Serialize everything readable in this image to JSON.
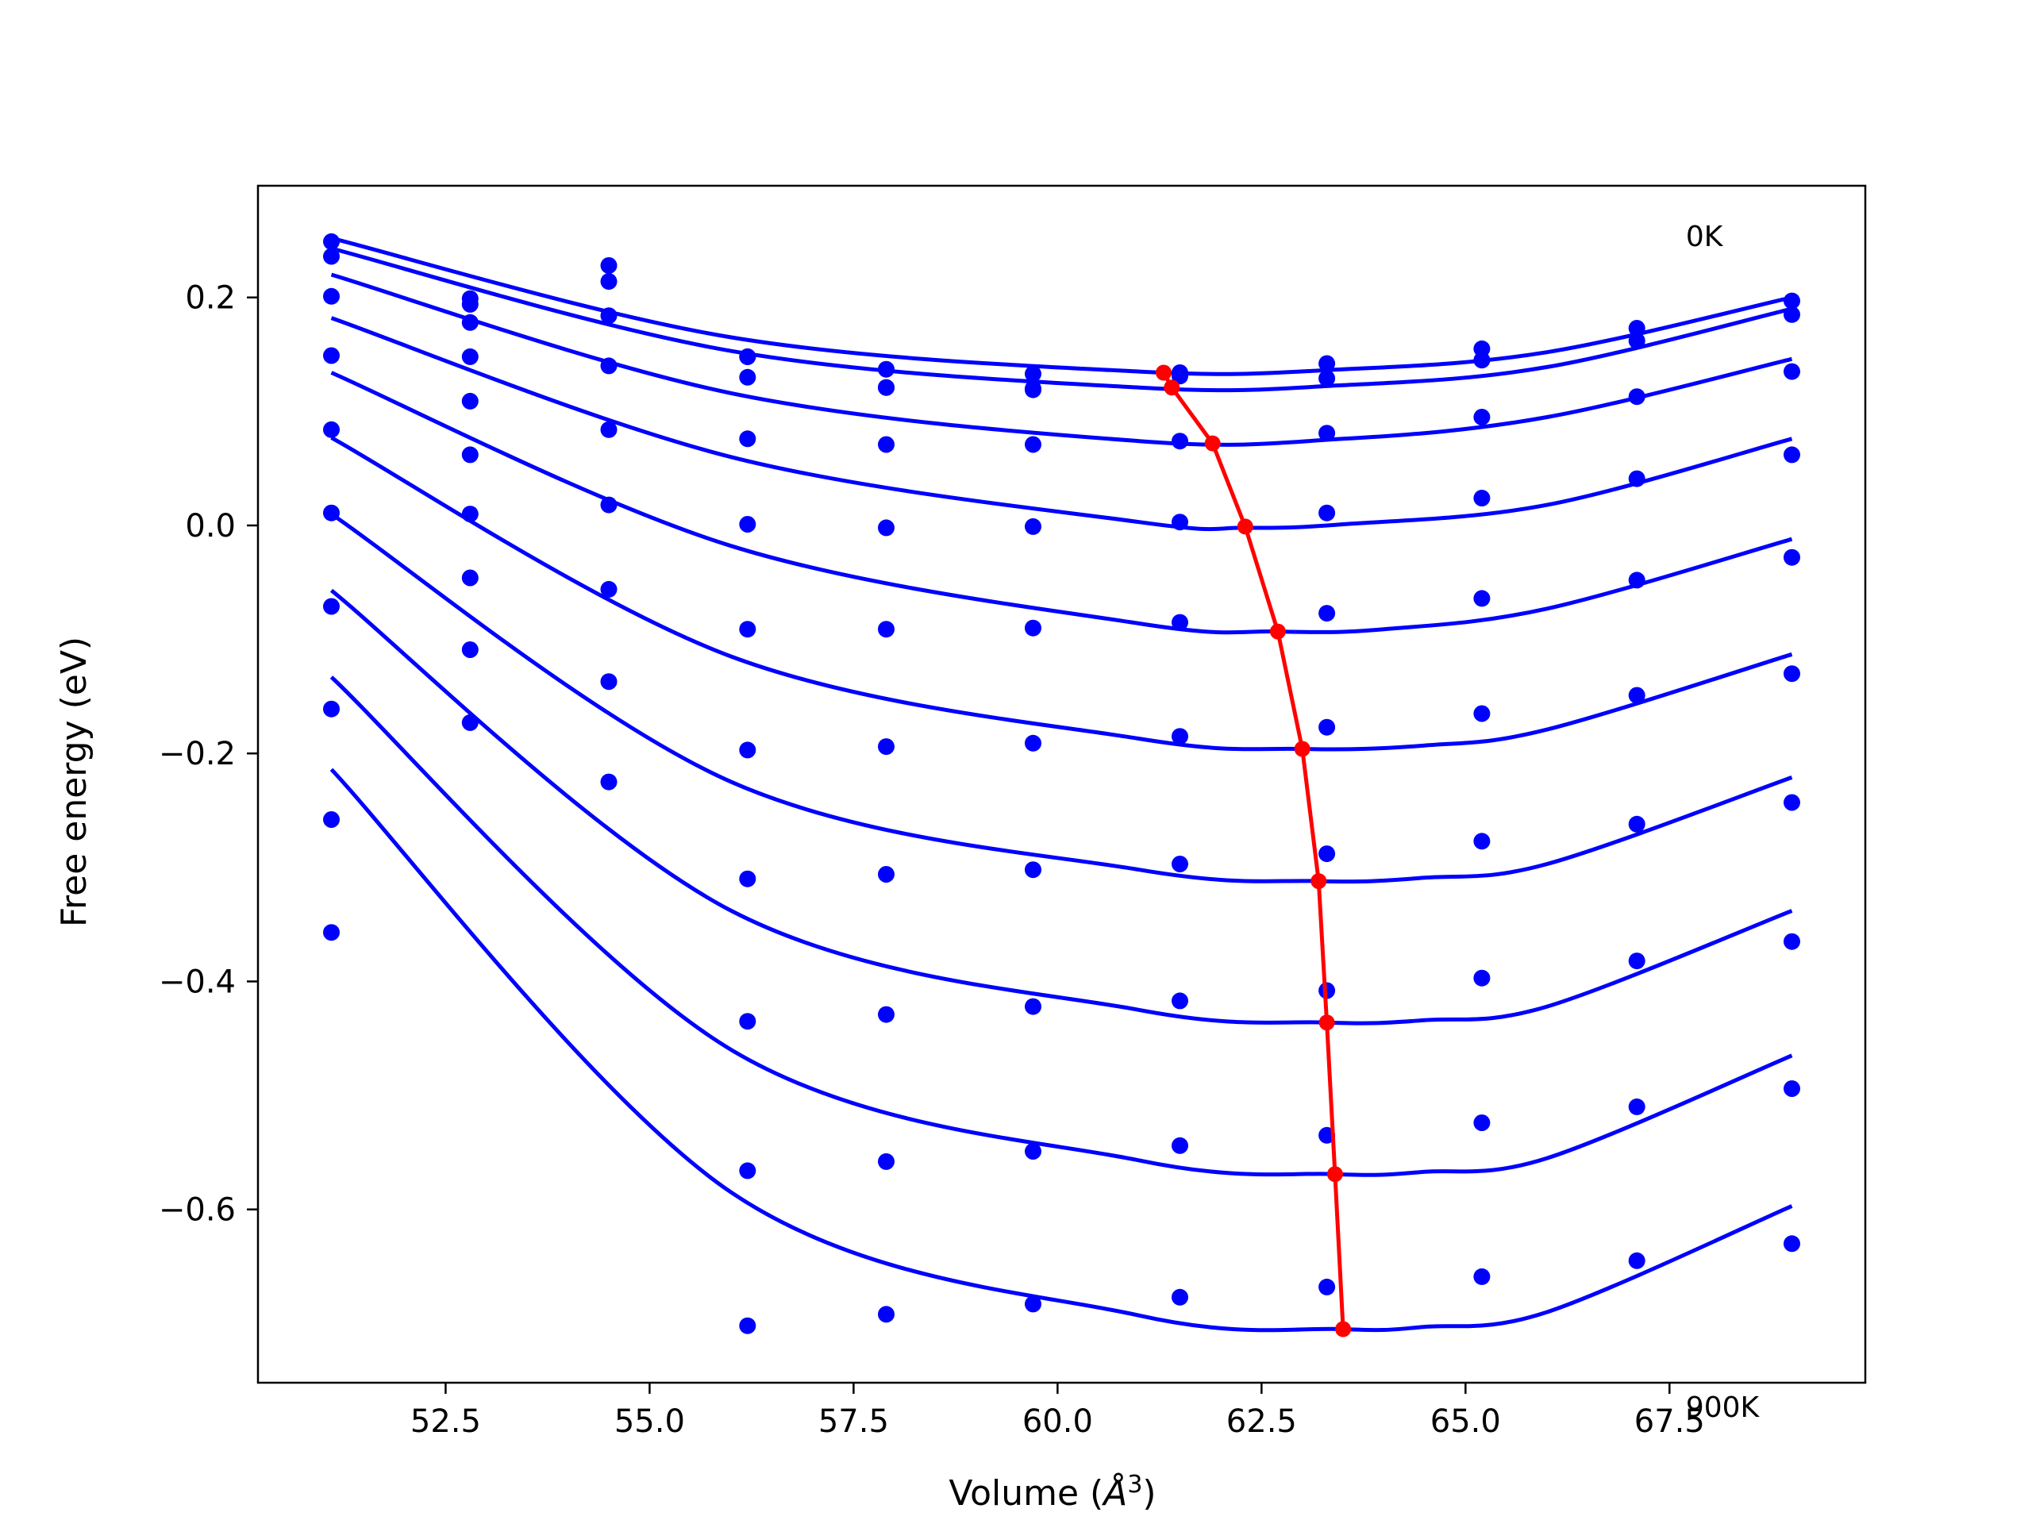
{
  "chart_data": {
    "type": "line",
    "title": "",
    "xlabel": "Volume (",
    "xlabel_symbol": "Å",
    "xlabel_exponent": "3",
    "xlabel_close": ")",
    "ylabel": "Free energy (eV)",
    "xlim": [
      50.2,
      69.9
    ],
    "ylim": [
      -0.752,
      0.298
    ],
    "grid": false,
    "legend": "none",
    "x_ticks": [
      {
        "value": 52.5,
        "label": "52.5"
      },
      {
        "value": 55.0,
        "label": "55.0"
      },
      {
        "value": 57.5,
        "label": "57.5"
      },
      {
        "value": 60.0,
        "label": "60.0"
      },
      {
        "value": 62.5,
        "label": "62.5"
      },
      {
        "value": 65.0,
        "label": "65.0"
      },
      {
        "value": 67.5,
        "label": "67.5"
      }
    ],
    "y_ticks": [
      {
        "value": 0.2,
        "label": "0.2"
      },
      {
        "value": 0.0,
        "label": "0.0"
      },
      {
        "value": -0.2,
        "label": "−0.2"
      },
      {
        "value": -0.4,
        "label": "−0.4"
      },
      {
        "value": -0.6,
        "label": "−0.6"
      }
    ],
    "annotations": [
      {
        "text": "0K",
        "x": 67.7,
        "y": 0.245
      },
      {
        "text": "900K",
        "x": 67.7,
        "y": -0.782
      }
    ],
    "colors": {
      "data": "#0000ff",
      "fit": "#0000ff",
      "minimum": "#ff0000"
    },
    "x": [
      51.1,
      52.8,
      54.5,
      56.2,
      57.9,
      59.7,
      61.5,
      63.3,
      65.2,
      67.1,
      69.0
    ],
    "series": [
      {
        "y": [
          0.249,
          0.199,
          0.228,
          0.148,
          0.137,
          0.133,
          0.134,
          0.142,
          0.155,
          0.173,
          0.197
        ]
      },
      {
        "y": [
          0.236,
          0.194,
          0.214,
          0.13,
          0.121,
          0.119,
          0.131,
          0.129,
          0.145,
          0.162,
          0.185
        ]
      },
      {
        "y": [
          0.201,
          0.178,
          0.184,
          0.148,
          0.121,
          0.12,
          0.074,
          0.081,
          0.095,
          0.113,
          0.135
        ]
      },
      {
        "y": [
          0.149,
          0.148,
          0.14,
          0.076,
          0.071,
          0.071,
          0.003,
          0.011,
          0.024,
          0.041,
          0.062
        ]
      },
      {
        "y": [
          0.084,
          0.109,
          0.084,
          0.001,
          -0.002,
          -0.001,
          -0.085,
          -0.077,
          -0.064,
          -0.048,
          -0.028
        ]
      },
      {
        "y": [
          0.011,
          0.062,
          0.018,
          -0.091,
          -0.091,
          -0.09,
          -0.185,
          -0.177,
          -0.165,
          -0.149,
          -0.13
        ]
      },
      {
        "y": [
          -0.071,
          0.01,
          -0.056,
          -0.197,
          -0.194,
          -0.191,
          -0.297,
          -0.288,
          -0.277,
          -0.262,
          -0.243
        ]
      },
      {
        "y": [
          -0.161,
          -0.046,
          -0.137,
          -0.31,
          -0.306,
          -0.302,
          -0.417,
          -0.408,
          -0.397,
          -0.382,
          -0.365
        ]
      },
      {
        "y": [
          -0.258,
          -0.109,
          -0.225,
          -0.435,
          -0.429,
          -0.422,
          -0.544,
          -0.535,
          -0.524,
          -0.51,
          -0.494
        ]
      },
      {
        "y": [
          -0.357,
          -0.173,
          null,
          -0.566,
          -0.558,
          -0.549,
          -0.677,
          -0.668,
          -0.659,
          -0.645,
          -0.63
        ]
      },
      {
        "y": [
          null,
          null,
          null,
          -0.702,
          -0.692,
          -0.683,
          null,
          null,
          null,
          null,
          null
        ]
      }
    ],
    "fit_curves": [
      {
        "x": [
          51.1,
          56.0,
          61.0,
          63.5,
          66.0,
          69.0
        ],
        "y": [
          0.252,
          0.165,
          0.135,
          0.137,
          0.152,
          0.2
        ]
      },
      {
        "x": [
          51.1,
          56.0,
          61.0,
          63.5,
          66.0,
          69.0
        ],
        "y": [
          0.243,
          0.153,
          0.121,
          0.123,
          0.139,
          0.19
        ]
      },
      {
        "x": [
          51.1,
          56.0,
          61.0,
          63.5,
          66.0,
          69.0
        ],
        "y": [
          0.22,
          0.116,
          0.074,
          0.076,
          0.095,
          0.146
        ]
      },
      {
        "x": [
          51.1,
          56.0,
          61.0,
          62.3,
          63.5,
          66.0,
          69.0
        ],
        "y": [
          0.182,
          0.06,
          0.003,
          -0.002,
          0.001,
          0.018,
          0.076
        ]
      },
      {
        "x": [
          51.1,
          56.0,
          61.0,
          62.7,
          64.0,
          66.0,
          69.0
        ],
        "y": [
          0.134,
          -0.018,
          -0.086,
          -0.093,
          -0.091,
          -0.073,
          -0.012
        ]
      },
      {
        "x": [
          51.1,
          56.0,
          61.0,
          63.0,
          64.5,
          66.0,
          69.0
        ],
        "y": [
          0.077,
          -0.115,
          -0.187,
          -0.196,
          -0.193,
          -0.179,
          -0.113
        ]
      },
      {
        "x": [
          51.1,
          56.0,
          61.0,
          63.2,
          64.5,
          66.0,
          69.0
        ],
        "y": [
          0.01,
          -0.225,
          -0.302,
          -0.312,
          -0.309,
          -0.297,
          -0.221
        ]
      },
      {
        "x": [
          51.1,
          56.0,
          61.0,
          63.3,
          64.5,
          66.0,
          69.0
        ],
        "y": [
          -0.057,
          -0.338,
          -0.425,
          -0.436,
          -0.434,
          -0.422,
          -0.338
        ]
      },
      {
        "x": [
          51.1,
          56.0,
          61.0,
          63.4,
          64.5,
          66.0,
          69.0
        ],
        "y": [
          -0.133,
          -0.46,
          -0.557,
          -0.569,
          -0.567,
          -0.555,
          -0.465
        ]
      },
      {
        "x": [
          51.1,
          56.0,
          61.0,
          63.5,
          64.5,
          66.0,
          69.0
        ],
        "y": [
          -0.214,
          -0.585,
          -0.693,
          -0.705,
          -0.703,
          -0.69,
          -0.597
        ]
      }
    ],
    "minimum_line": {
      "x": [
        61.3,
        61.4,
        61.9,
        62.3,
        62.7,
        63.0,
        63.2,
        63.3,
        63.4,
        63.5
      ],
      "y": [
        0.134,
        0.121,
        0.072,
        -0.001,
        -0.093,
        -0.196,
        -0.312,
        -0.436,
        -0.569,
        -0.705
      ]
    }
  }
}
